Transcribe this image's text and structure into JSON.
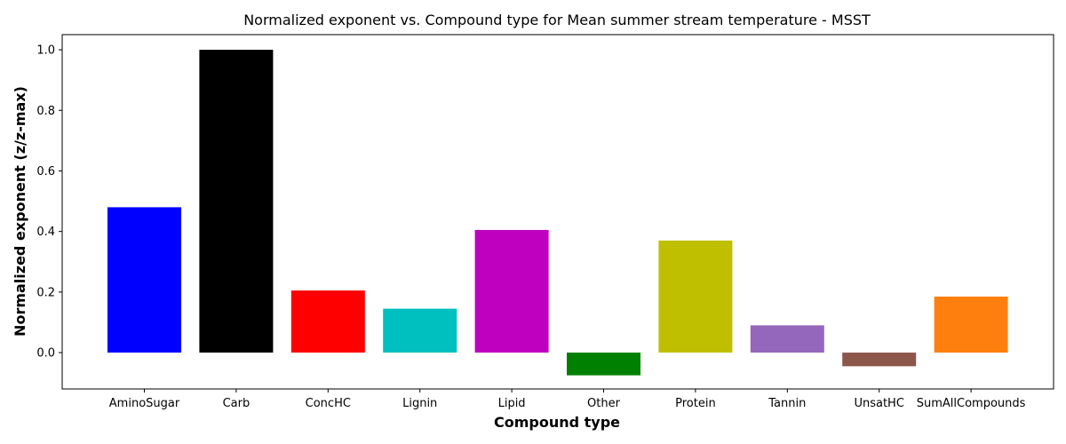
{
  "chart_data": {
    "type": "bar",
    "title": "Normalized exponent vs. Compound type for Mean summer stream temperature - MSST",
    "xlabel": "Compound type",
    "ylabel": "Normalized exponent (z/z-max)",
    "categories": [
      "AminoSugar",
      "Carb",
      "ConcHC",
      "Lignin",
      "Lipid",
      "Other",
      "Protein",
      "Tannin",
      "UnsatHC",
      "SumAllCompounds"
    ],
    "values": [
      0.48,
      1.0,
      0.205,
      0.145,
      0.405,
      -0.075,
      0.37,
      0.09,
      -0.045,
      0.185
    ],
    "colors": [
      "#0000ff",
      "#000000",
      "#ff0000",
      "#00bfbf",
      "#bf00bf",
      "#008000",
      "#bfbf00",
      "#9467bd",
      "#8c564b",
      "#ff7f0e"
    ],
    "ylim": [
      -0.12,
      1.05
    ],
    "yticks": [
      0.0,
      0.2,
      0.4,
      0.6,
      0.8,
      1.0
    ],
    "ytick_labels": [
      "0.0",
      "0.2",
      "0.4",
      "0.6",
      "0.8",
      "1.0"
    ],
    "grid": false,
    "legend": "none"
  }
}
